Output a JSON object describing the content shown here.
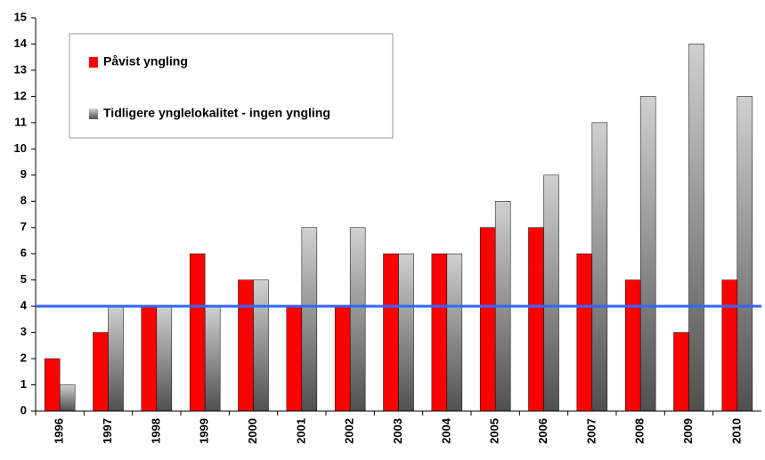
{
  "chart_data": {
    "type": "bar",
    "categories": [
      "1996",
      "1997",
      "1998",
      "1999",
      "2000",
      "2001",
      "2002",
      "2003",
      "2004",
      "2005",
      "2006",
      "2007",
      "2008",
      "2009",
      "2010"
    ],
    "series": [
      {
        "name": "Påvist yngling",
        "color": "#ff0000",
        "values": [
          2,
          3,
          4,
          6,
          5,
          4,
          4,
          6,
          6,
          7,
          7,
          6,
          5,
          3,
          5
        ]
      },
      {
        "name": "Tidligere ynglelokalitet - ingen yngling",
        "color": [
          "#505050",
          "#d0d0d0"
        ],
        "values": [
          1,
          4,
          4,
          4,
          5,
          7,
          7,
          6,
          6,
          8,
          9,
          11,
          12,
          14,
          12
        ]
      }
    ],
    "reference_line": {
      "value": 4,
      "color": "#3366ff"
    },
    "ylim": [
      0,
      15
    ],
    "yticks": [
      0,
      1,
      2,
      3,
      4,
      5,
      6,
      7,
      8,
      9,
      10,
      11,
      12,
      13,
      14,
      15
    ],
    "legend": "upper left"
  }
}
